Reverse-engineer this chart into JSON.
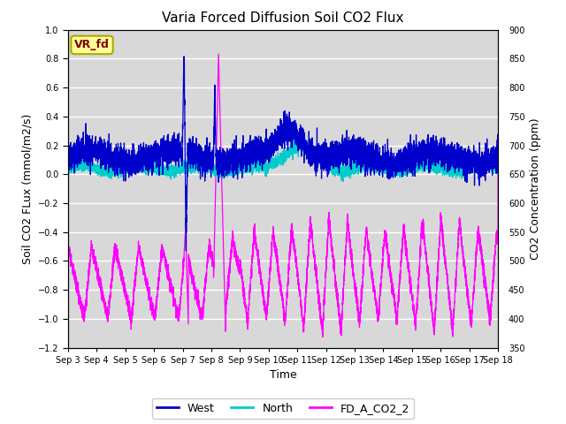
{
  "title": "Varia Forced Diffusion Soil CO2 Flux",
  "xlabel": "Time",
  "ylabel_left": "Soil CO2 FLux (mmol/m2/s)",
  "ylabel_right": "CO2 Concentration (ppm)",
  "ylim_left": [
    -1.2,
    1.0
  ],
  "ylim_right": [
    350,
    900
  ],
  "yticks_left": [
    -1.2,
    -1.0,
    -0.8,
    -0.6,
    -0.4,
    -0.2,
    0.0,
    0.2,
    0.4,
    0.6,
    0.8,
    1.0
  ],
  "yticks_right": [
    350,
    400,
    450,
    500,
    550,
    600,
    650,
    700,
    750,
    800,
    850,
    900
  ],
  "bg_color": "#d8d8d8",
  "label_box_color": "#ffff99",
  "label_box_text": "VR_fd",
  "label_box_text_color": "#800000",
  "west_color": "#0000cc",
  "north_color": "#00cccc",
  "co2_color": "#ff00ff",
  "legend_labels": [
    "West",
    "North",
    "FD_A_CO2_2"
  ],
  "xtick_labels": [
    "Sep 3",
    "Sep 4",
    "Sep 5",
    "Sep 6",
    "Sep 7",
    "Sep 8",
    "Sep 9",
    "Sep 10",
    "Sep 11",
    "Sep 12",
    "Sep 13",
    "Sep 14",
    "Sep 15",
    "Sep 16",
    "Sep 17",
    "Sep 18"
  ],
  "seed": 42
}
